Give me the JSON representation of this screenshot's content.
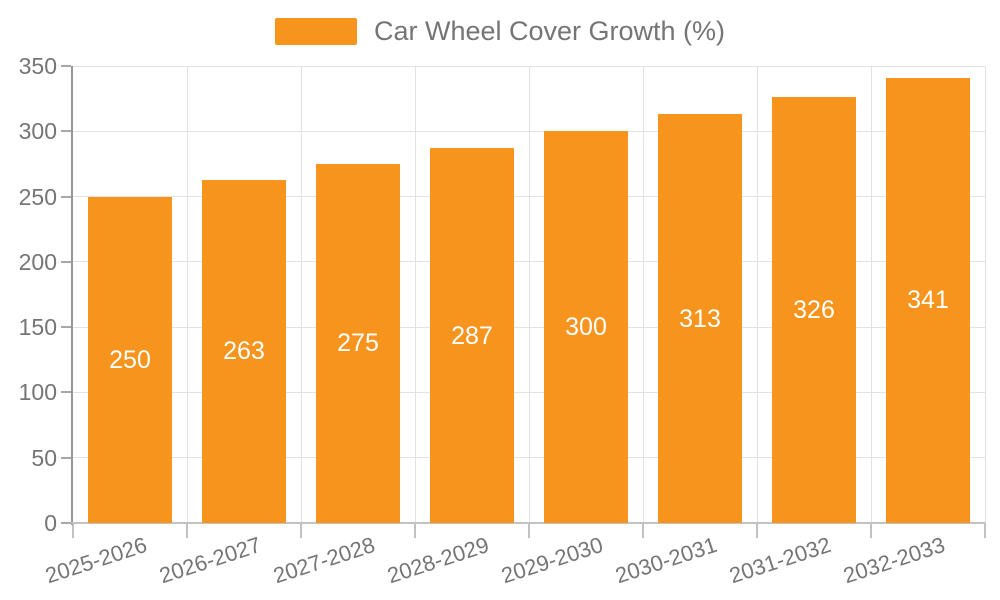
{
  "legend": {
    "label": "Car Wheel Cover Growth (%)"
  },
  "chart_data": {
    "type": "bar",
    "title": "Car Wheel Cover Growth (%)",
    "categories": [
      "2025-2026",
      "2026-2027",
      "2027-2028",
      "2028-2029",
      "2029-2030",
      "2030-2031",
      "2031-2032",
      "2032-2033"
    ],
    "values": [
      250,
      263,
      275,
      287,
      300,
      313,
      326,
      341
    ],
    "yticks": [
      0,
      50,
      100,
      150,
      200,
      250,
      300,
      350
    ],
    "ylim": [
      0,
      350
    ],
    "xlabel": "",
    "ylabel": "",
    "grid": true,
    "legend_position": "top",
    "bar_color": "#F7941E",
    "value_label_color": "#FFFFFF",
    "axis_text_color": "#757575",
    "grid_color": "#E2E2E2"
  }
}
